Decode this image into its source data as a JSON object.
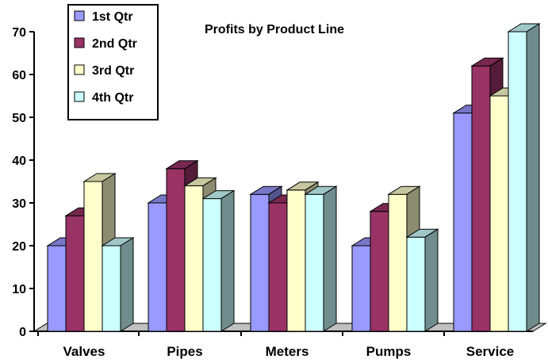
{
  "chart_data": {
    "type": "bar",
    "title": "Profits by Product Line",
    "xlabel": "",
    "ylabel": "",
    "categories": [
      "Valves",
      "Pipes",
      "Meters",
      "Pumps",
      "Service"
    ],
    "series": [
      {
        "name": "1st Qtr",
        "values": [
          20,
          30,
          32,
          20,
          51
        ],
        "color": "#9999ff"
      },
      {
        "name": "2nd Qtr",
        "values": [
          27,
          38,
          30,
          28,
          62
        ],
        "color": "#993366"
      },
      {
        "name": "3rd Qtr",
        "values": [
          35,
          34,
          33,
          32,
          55
        ],
        "color": "#ffffcc"
      },
      {
        "name": "4th Qtr",
        "values": [
          20,
          31,
          32,
          22,
          70
        ],
        "color": "#ccffff"
      }
    ],
    "ylim": [
      0,
      70
    ],
    "yticks": [
      0,
      10,
      20,
      30,
      40,
      50,
      60,
      70
    ],
    "grid": false,
    "legend_position": "top-left",
    "style": "3d-column"
  }
}
